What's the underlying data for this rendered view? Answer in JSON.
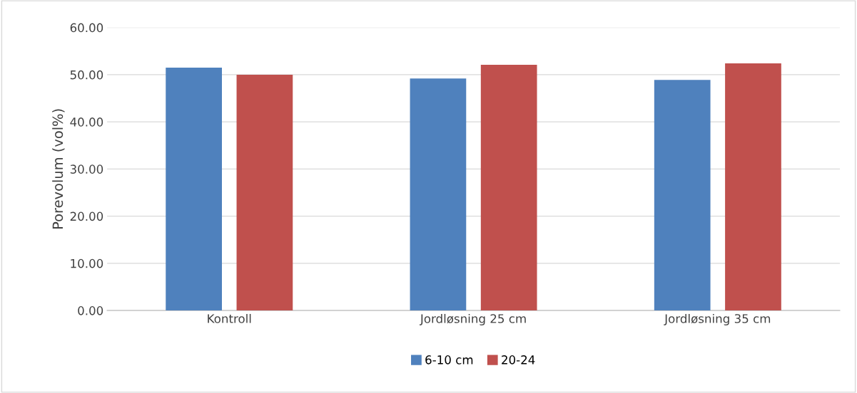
{
  "chart_data": {
    "type": "bar",
    "ylabel": "Porevolum (vol%)",
    "categories": [
      "Kontroll",
      "Jordløsning 25 cm",
      "Jordløsning 35 cm"
    ],
    "series": [
      {
        "name": "6-10 cm",
        "color": "#4f81bd",
        "values": [
          51.5,
          49.2,
          48.9
        ]
      },
      {
        "name": "20-24",
        "color": "#c0504d",
        "values": [
          50.0,
          52.1,
          52.4
        ]
      }
    ],
    "ylim": [
      0,
      60
    ],
    "yticks": [
      {
        "value": 0,
        "label": "0.00"
      },
      {
        "value": 10,
        "label": "10.00"
      },
      {
        "value": 20,
        "label": "20.00"
      },
      {
        "value": 30,
        "label": "30.00"
      },
      {
        "value": 40,
        "label": "40.00"
      },
      {
        "value": 50,
        "label": "50.00"
      },
      {
        "value": 60,
        "label": "60.00"
      }
    ],
    "grid": "y",
    "legend": "bottom"
  }
}
